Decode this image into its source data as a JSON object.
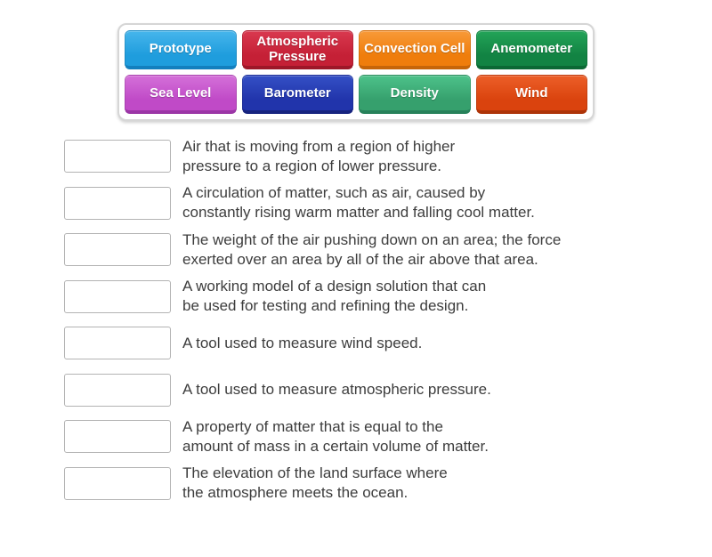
{
  "word_bank": {
    "tiles": [
      {
        "label": "Prototype",
        "color_top": "#46b5ec",
        "color_base": "#1f9ddd",
        "color_edge": "#137fbe"
      },
      {
        "label": "Atmospheric Pressure",
        "color_top": "#d9394f",
        "color_base": "#c52036",
        "color_edge": "#9d1728"
      },
      {
        "label": "Convection Cell",
        "color_top": "#f89a38",
        "color_base": "#ef7d0c",
        "color_edge": "#c66509"
      },
      {
        "label": "Anemometer",
        "color_top": "#23a458",
        "color_base": "#128343",
        "color_edge": "#0b6834"
      },
      {
        "label": "Sea Level",
        "color_top": "#d470d9",
        "color_base": "#c04ac7",
        "color_edge": "#9b36a6"
      },
      {
        "label": "Barometer",
        "color_top": "#3450c5",
        "color_base": "#2134ab",
        "color_edge": "#16237e"
      },
      {
        "label": "Density",
        "color_top": "#4dc28a",
        "color_base": "#36a06d",
        "color_edge": "#27815a"
      },
      {
        "label": "Wind",
        "color_top": "#ec5f28",
        "color_base": "#da430e",
        "color_edge": "#ad3408"
      }
    ]
  },
  "match_list": {
    "items": [
      {
        "lines": [
          "Air that is moving from a region of higher",
          "pressure to a region of lower pressure."
        ]
      },
      {
        "lines": [
          "A circulation of matter, such as air, caused by",
          "constantly rising warm matter and falling cool matter."
        ]
      },
      {
        "lines": [
          "The weight of the air pushing down on an area; the force",
          "exerted over an area by all of the air above that area."
        ]
      },
      {
        "lines": [
          "A working model of a design solution that can",
          "be used for testing and refining the design."
        ]
      },
      {
        "lines": [
          "A tool used to measure wind speed."
        ]
      },
      {
        "lines": [
          "A tool used to measure atmospheric pressure."
        ]
      },
      {
        "lines": [
          "A property of matter that is equal to the",
          "amount of mass in a certain volume of matter."
        ]
      },
      {
        "lines": [
          "The elevation of the land surface where",
          "the atmosphere meets the ocean."
        ]
      }
    ]
  },
  "colors": {
    "page_background": "#ffffff",
    "definition_text": "#3d3d3d",
    "slot_border": "#b3b3b3",
    "word_bank_border": "#d6d6d6"
  }
}
